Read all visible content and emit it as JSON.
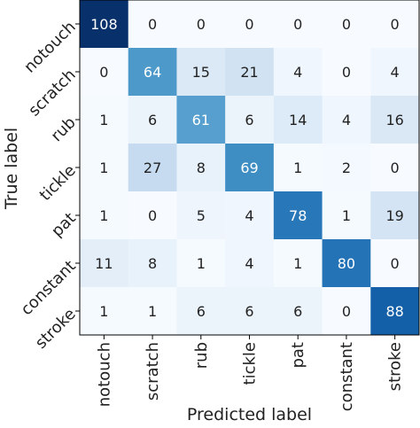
{
  "chart_data": {
    "type": "heatmap",
    "title": "",
    "xlabel": "Predicted label",
    "ylabel": "True label",
    "x_categories": [
      "notouch",
      "scratch",
      "rub",
      "tickle",
      "pat",
      "constant",
      "stroke"
    ],
    "y_categories": [
      "notouch",
      "scratch",
      "rub",
      "tickle",
      "pat",
      "constant",
      "stroke"
    ],
    "matrix": [
      [
        108,
        0,
        0,
        0,
        0,
        0,
        0
      ],
      [
        0,
        64,
        15,
        21,
        4,
        0,
        4
      ],
      [
        1,
        6,
        61,
        6,
        14,
        4,
        16
      ],
      [
        1,
        27,
        8,
        69,
        1,
        2,
        0
      ],
      [
        1,
        0,
        5,
        4,
        78,
        1,
        19
      ],
      [
        11,
        8,
        1,
        4,
        1,
        80,
        0
      ],
      [
        1,
        1,
        6,
        6,
        6,
        0,
        88
      ]
    ],
    "colormap": "Blues",
    "value_range": [
      0,
      108
    ],
    "colors": {
      "low": "#f7fbff",
      "high": "#08306b"
    }
  }
}
